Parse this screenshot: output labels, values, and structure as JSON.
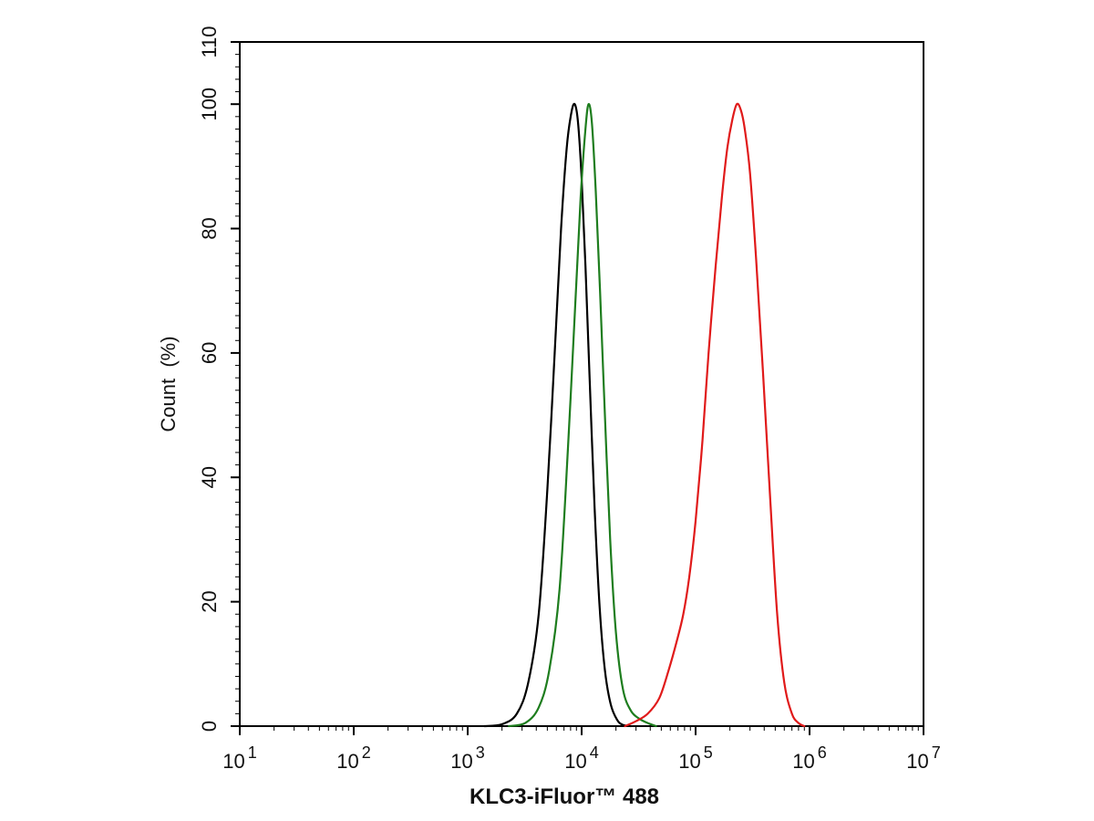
{
  "chart_data": {
    "type": "line",
    "xlabel": "KLC3-iFluor™ 488",
    "ylabel": "Count  (%)",
    "x_scale": "log",
    "xlim": [
      10,
      10000000
    ],
    "ylim": [
      0,
      110
    ],
    "x_ticks": [
      {
        "base": "10",
        "exp": "1"
      },
      {
        "base": "10",
        "exp": "2"
      },
      {
        "base": "10",
        "exp": "3"
      },
      {
        "base": "10",
        "exp": "4"
      },
      {
        "base": "10",
        "exp": "5"
      },
      {
        "base": "10",
        "exp": "6"
      },
      {
        "base": "10",
        "exp": "7"
      }
    ],
    "y_ticks": [
      "0",
      "20",
      "40",
      "60",
      "80",
      "100",
      "110"
    ],
    "grid": false,
    "legend": "none",
    "series": [
      {
        "color": "#000000",
        "points": [
          [
            1400,
            0
          ],
          [
            2000,
            0.3
          ],
          [
            2700,
            2
          ],
          [
            3400,
            7
          ],
          [
            4200,
            18
          ],
          [
            5000,
            38
          ],
          [
            5800,
            60
          ],
          [
            6600,
            80
          ],
          [
            7400,
            93
          ],
          [
            8100,
            98.5
          ],
          [
            8700,
            100
          ],
          [
            9300,
            97
          ],
          [
            10000,
            88
          ],
          [
            10800,
            74
          ],
          [
            11800,
            55
          ],
          [
            13000,
            35
          ],
          [
            14400,
            19
          ],
          [
            16000,
            9
          ],
          [
            18000,
            3.5
          ],
          [
            20500,
            1
          ],
          [
            23000,
            0.2
          ],
          [
            27000,
            0
          ]
        ]
      },
      {
        "color": "#1e7d1e",
        "points": [
          [
            2300,
            0
          ],
          [
            3200,
            0.5
          ],
          [
            4200,
            3
          ],
          [
            5200,
            9
          ],
          [
            6400,
            22
          ],
          [
            7600,
            45
          ],
          [
            8800,
            68
          ],
          [
            9800,
            85
          ],
          [
            10800,
            96
          ],
          [
            11500,
            100
          ],
          [
            12300,
            97
          ],
          [
            13300,
            86
          ],
          [
            14500,
            70
          ],
          [
            16000,
            50
          ],
          [
            17800,
            30
          ],
          [
            20000,
            15
          ],
          [
            23000,
            6
          ],
          [
            27000,
            2.5
          ],
          [
            32000,
            1.2
          ],
          [
            38000,
            0.5
          ],
          [
            45000,
            0
          ]
        ]
      },
      {
        "color": "#e01a1a",
        "points": [
          [
            24000,
            0
          ],
          [
            30000,
            0.8
          ],
          [
            38000,
            2
          ],
          [
            48000,
            4.5
          ],
          [
            58000,
            9
          ],
          [
            68000,
            13.5
          ],
          [
            78000,
            18
          ],
          [
            88000,
            24
          ],
          [
            100000,
            33
          ],
          [
            115000,
            46
          ],
          [
            130000,
            60
          ],
          [
            150000,
            74
          ],
          [
            170000,
            85
          ],
          [
            190000,
            93
          ],
          [
            210000,
            97.5
          ],
          [
            230000,
            100
          ],
          [
            250000,
            99
          ],
          [
            270000,
            96
          ],
          [
            300000,
            89
          ],
          [
            340000,
            75
          ],
          [
            390000,
            57
          ],
          [
            450000,
            37
          ],
          [
            520000,
            18
          ],
          [
            600000,
            7
          ],
          [
            700000,
            2
          ],
          [
            800000,
            0.5
          ],
          [
            900000,
            0
          ]
        ]
      }
    ]
  }
}
